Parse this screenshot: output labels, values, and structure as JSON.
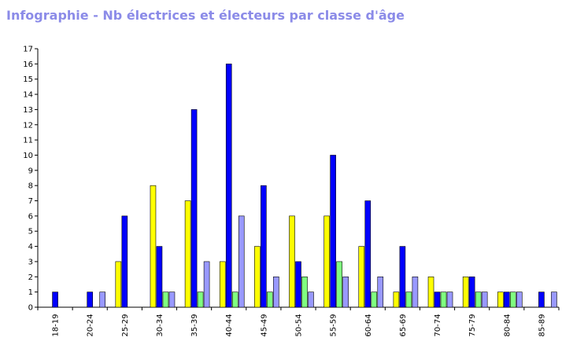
{
  "chart_data": {
    "type": "bar",
    "title": "Infographie - Nb électrices et électeurs par classe d'âge",
    "categories": [
      "18-19",
      "20-24",
      "25-29",
      "30-34",
      "35-39",
      "40-44",
      "45-49",
      "50-54",
      "55-59",
      "60-64",
      "65-69",
      "70-74",
      "75-79",
      "80-84",
      "85-89"
    ],
    "series": [
      {
        "color": "#ffff00",
        "values": [
          0,
          0,
          3,
          8,
          7,
          3,
          4,
          6,
          6,
          4,
          1,
          2,
          2,
          1,
          0
        ]
      },
      {
        "color": "#0000ff",
        "values": [
          1,
          1,
          6,
          4,
          13,
          16,
          8,
          3,
          10,
          7,
          4,
          1,
          2,
          1,
          1
        ]
      },
      {
        "color": "#80ff80",
        "values": [
          0,
          0,
          0,
          1,
          1,
          1,
          1,
          2,
          3,
          1,
          1,
          1,
          1,
          1,
          0
        ]
      },
      {
        "color": "#9999ff",
        "values": [
          0,
          1,
          0,
          1,
          3,
          6,
          2,
          1,
          2,
          2,
          2,
          1,
          1,
          1,
          1
        ]
      }
    ],
    "yticks": [
      0,
      1,
      2,
      3,
      4,
      5,
      6,
      7,
      8,
      9,
      10,
      11,
      12,
      13,
      14,
      15,
      16,
      17
    ],
    "ylim": [
      0,
      17
    ],
    "xlabel": "",
    "ylabel": "",
    "grid": false,
    "legend": "none"
  }
}
